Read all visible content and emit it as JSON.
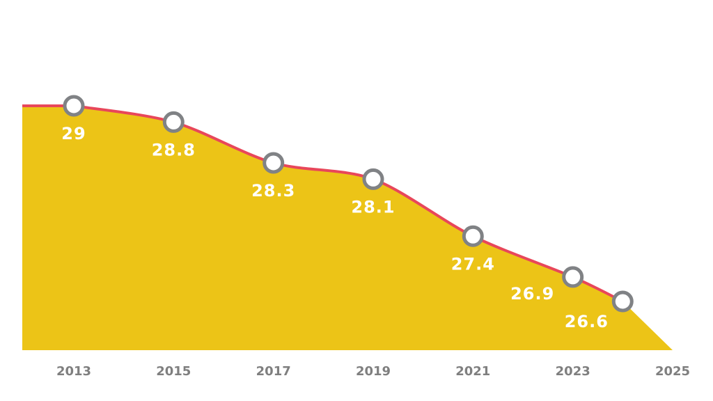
{
  "chart_data": {
    "type": "area",
    "x": [
      "2013",
      "2015",
      "2017",
      "2019",
      "2021",
      "2023",
      "2024"
    ],
    "values": [
      29,
      28.8,
      28.3,
      28.1,
      27.4,
      26.9,
      26.6
    ],
    "data_labels": [
      "29",
      "28.8",
      "28.3",
      "28.1",
      "27.4",
      "26.9",
      "26.6"
    ],
    "tick_labels": [
      "2013",
      "2015",
      "2017",
      "2019",
      "2021",
      "2023",
      "2025"
    ],
    "title": "",
    "xlabel": "",
    "ylabel": "",
    "grid": false,
    "legend": "none",
    "colors": {
      "area": "#ecc417",
      "line": "#e8475a",
      "marker_stroke": "#808285",
      "marker_fill": "#ffffff",
      "label": "#ffffff",
      "tick": "#7f7f7f"
    }
  }
}
